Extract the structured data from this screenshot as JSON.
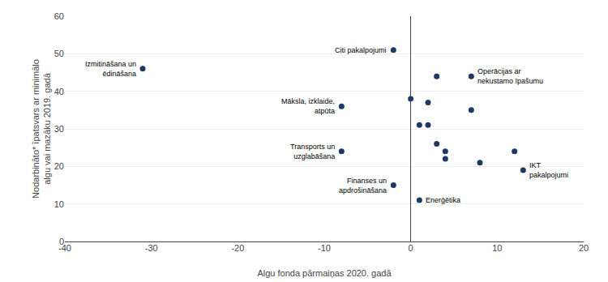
{
  "chart_data": {
    "type": "scatter",
    "x": [
      -31,
      -8,
      -8,
      -2,
      -2,
      0,
      1,
      2,
      2,
      3,
      3,
      4,
      4,
      7,
      8,
      1,
      12,
      13,
      7
    ],
    "values": [
      46,
      36,
      24,
      51,
      15,
      38,
      31,
      37,
      31,
      44,
      26,
      24,
      22,
      35,
      21,
      11,
      24,
      19,
      44
    ],
    "color": "#1f3864",
    "marker": "circle",
    "annotations": [
      {
        "text": "Izmitināšana un\nēdināšana",
        "x": -31,
        "y": 46
      },
      {
        "text": "Māksla, izklaide,\natpūta",
        "x": -8,
        "y": 36
      },
      {
        "text": "Transports un\nuzglabāšana",
        "x": -8,
        "y": 24
      },
      {
        "text": "Citi pakalpojumi",
        "x": -2,
        "y": 51
      },
      {
        "text": "Finanses un\napdrošināšana",
        "x": -2,
        "y": 15
      },
      {
        "text": "Enerģētika",
        "x": 1,
        "y": 11
      },
      {
        "text": "IKT\npakalpojumi",
        "x": 13,
        "y": 19
      },
      {
        "text": "Operācijas ar\nnekustamo īpašumu",
        "x": 7,
        "y": 44
      }
    ],
    "xlabel": "Algu fonda pārmaiņas 2020. gadā",
    "ylabel": "Nodarbināto* īpatsvars ar minimālo\nalgu vai mazāku 2019. gadā",
    "xlim": [
      -40,
      20
    ],
    "ylim": [
      0,
      60
    ],
    "xticks": [
      -40,
      -30,
      -20,
      -10,
      0,
      10,
      20
    ],
    "yticks": [
      0,
      10,
      20,
      30,
      40,
      50,
      60
    ],
    "grid": "y"
  }
}
